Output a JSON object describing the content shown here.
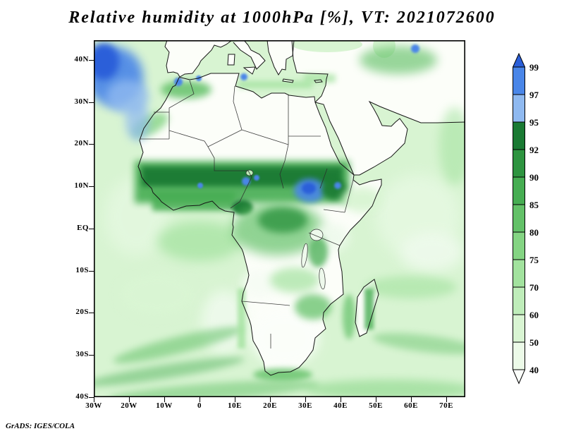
{
  "title": "Relative humidity at 1000hPa [%], VT: 2021072600",
  "attribution": "GrADS: IGES/COLA",
  "axes": {
    "lat_labels": [
      "40N",
      "30N",
      "20N",
      "10N",
      "EQ",
      "10S",
      "20S",
      "30S",
      "40S"
    ],
    "lon_labels": [
      "30W",
      "20W",
      "10W",
      "0",
      "10E",
      "20E",
      "30E",
      "40E",
      "50E",
      "60E",
      "70E"
    ]
  },
  "colorbar": {
    "labels": [
      "99",
      "97",
      "95",
      "92",
      "90",
      "85",
      "80",
      "75",
      "70",
      "60",
      "50",
      "40"
    ],
    "above_color": "#2b5fd9",
    "below_color": "#fbfefa",
    "segments": [
      {
        "range": "97-99",
        "color": "#4a86e8"
      },
      {
        "range": "95-97",
        "color": "#8fb9f0"
      },
      {
        "range": "92-95",
        "color": "#1a7a33"
      },
      {
        "range": "90-92",
        "color": "#2e9440"
      },
      {
        "range": "85-90",
        "color": "#46ad52"
      },
      {
        "range": "80-85",
        "color": "#63c168"
      },
      {
        "range": "75-80",
        "color": "#84d483"
      },
      {
        "range": "70-75",
        "color": "#a2e29e"
      },
      {
        "range": "60-70",
        "color": "#bfedba"
      },
      {
        "range": "50-60",
        "color": "#d9f5d3"
      },
      {
        "range": "40-50",
        "color": "#ecfae8"
      }
    ]
  },
  "chart_data": {
    "type": "heatmap",
    "title": "Relative humidity at 1000hPa [%], VT: 2021072600",
    "variable": "Relative humidity",
    "level": "1000hPa",
    "units": "%",
    "valid_time": "2021072600",
    "x_ticks": [
      "30W",
      "20W",
      "10W",
      "0",
      "10E",
      "20E",
      "30E",
      "40E",
      "50E",
      "60E",
      "70E"
    ],
    "y_ticks": [
      "40N",
      "30N",
      "20N",
      "10N",
      "EQ",
      "10S",
      "20S",
      "30S",
      "40S"
    ],
    "scale_levels": [
      40,
      50,
      60,
      70,
      75,
      80,
      85,
      90,
      92,
      95,
      97,
      99
    ],
    "legend_position": "right",
    "source": "GrADS: IGES/COLA"
  }
}
